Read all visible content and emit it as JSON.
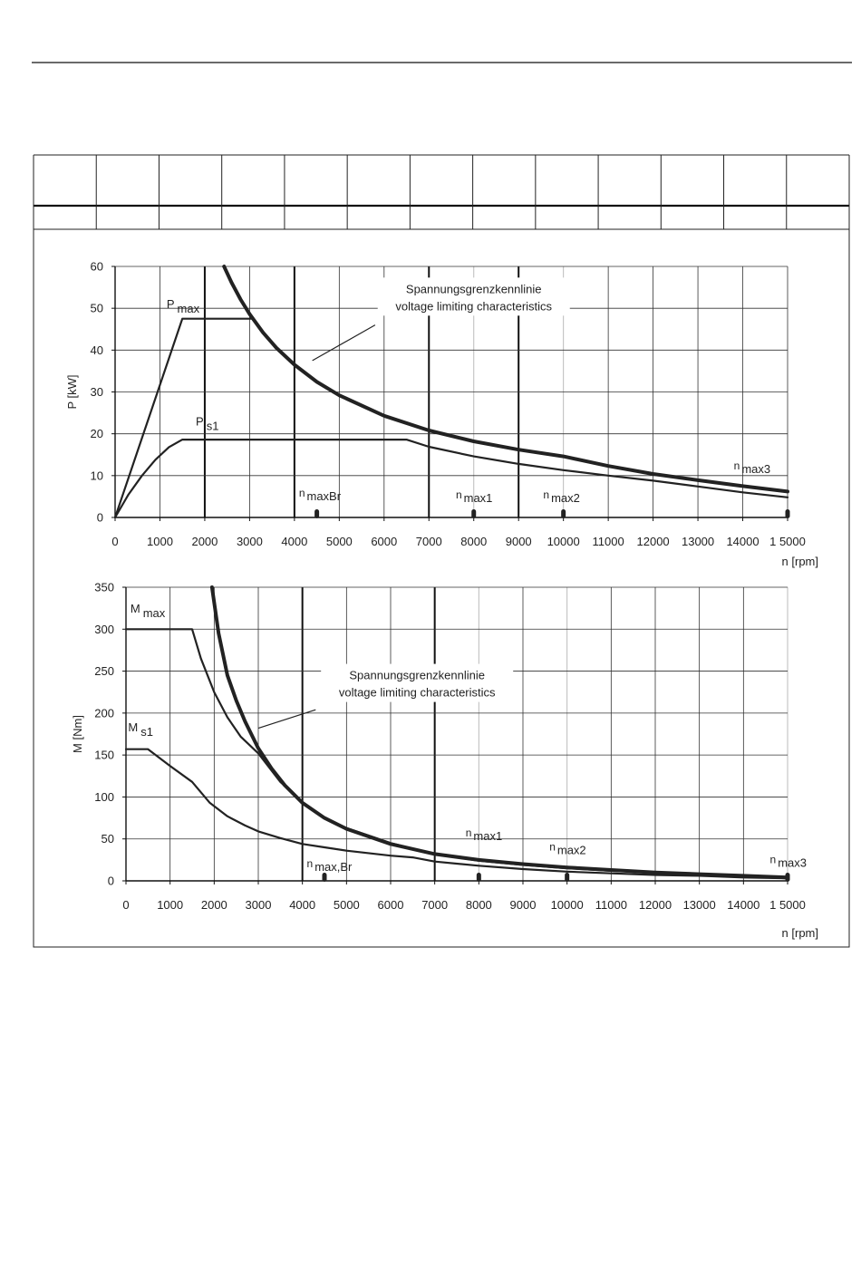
{
  "header_table": {
    "columns": 13,
    "rows": 2
  },
  "chart_data": [
    {
      "type": "line",
      "ylabel": "P [kW]",
      "xlabel": "n [rpm]",
      "xlim": [
        0,
        15000
      ],
      "ylim": [
        0,
        60
      ],
      "xticks": [
        0,
        1000,
        2000,
        3000,
        4000,
        5000,
        6000,
        7000,
        8000,
        9000,
        10000,
        11000,
        12000,
        13000,
        14000,
        15000
      ],
      "xtick_labels": [
        "0",
        "1000",
        "2000",
        "3000",
        "4000",
        "5000",
        "6000",
        "7000",
        "8000",
        "9000",
        "10000",
        "11000",
        "12000",
        "13000",
        "14000",
        "1 5000"
      ],
      "yticks": [
        0,
        10,
        20,
        30,
        40,
        50,
        60
      ],
      "ytick_labels": [
        "0",
        "10",
        "20",
        "30",
        "40",
        "50",
        "60"
      ],
      "grid": true,
      "series": [
        {
          "name": "Pmax",
          "label_main": "P",
          "label_sub": "max",
          "label_at": [
            1150,
            50
          ],
          "x": [
            0,
            1500,
            3050
          ],
          "y": [
            0,
            47.5,
            47.5
          ]
        },
        {
          "name": "Ps1",
          "label_main": "P",
          "label_sub": "s1",
          "label_at": [
            1800,
            22
          ],
          "x": [
            0,
            300,
            600,
            900,
            1200,
            1500,
            2000,
            3000,
            4000,
            5000,
            6000,
            6500,
            7000,
            8000,
            9000,
            10000,
            11000,
            12000,
            13000,
            14000,
            15000
          ],
          "y": [
            0,
            5.5,
            10,
            13.8,
            16.8,
            18.6,
            18.6,
            18.6,
            18.6,
            18.6,
            18.6,
            18.6,
            16.9,
            14.6,
            12.8,
            11.3,
            10.0,
            8.8,
            7.4,
            6.0,
            4.8
          ]
        },
        {
          "name": "voltage-limit",
          "emphasis": true,
          "x": [
            2430,
            2600,
            2800,
            3000,
            3300,
            3600,
            4000,
            4500,
            5000,
            6000,
            7000,
            8000,
            9000,
            10000,
            11000,
            12000,
            13000,
            14000,
            15000
          ],
          "y": [
            60,
            56.1,
            52.1,
            48.6,
            44.2,
            40.5,
            36.5,
            32.4,
            29.2,
            24.3,
            20.8,
            18.2,
            16.2,
            14.6,
            12.3,
            10.4,
            8.9,
            7.5,
            6.2
          ]
        }
      ],
      "markers": [
        {
          "label_main": "n",
          "label_sub": "maxBr",
          "x": 4500,
          "label_at": [
            4100,
            5
          ]
        },
        {
          "label_main": "n",
          "label_sub": "max1",
          "x": 8000,
          "label_at": [
            7600,
            4.5
          ]
        },
        {
          "label_main": "n",
          "label_sub": "max2",
          "x": 10000,
          "label_at": [
            9550,
            4.5
          ]
        },
        {
          "label_main": "n",
          "label_sub": "max3",
          "x": 15000,
          "label_at": [
            13800,
            11.5
          ]
        }
      ],
      "heavy_vlines": [
        2000,
        4000,
        7000,
        9000
      ],
      "light_vlines": [
        8000,
        10000
      ],
      "annotation": {
        "line1": "Spannungsgrenzkennlinie",
        "line2": "voltage limiting characteristics",
        "at": [
          8000,
          53
        ],
        "pointer_from": [
          5800,
          46
        ],
        "pointer_to": [
          4400,
          37.5
        ]
      }
    },
    {
      "type": "line",
      "ylabel": "M [Nm]",
      "xlabel": "n [rpm]",
      "xlim": [
        0,
        15000
      ],
      "ylim": [
        0,
        350
      ],
      "xticks": [
        0,
        1000,
        2000,
        3000,
        4000,
        5000,
        6000,
        7000,
        8000,
        9000,
        10000,
        11000,
        12000,
        13000,
        14000,
        15000
      ],
      "xtick_labels": [
        "0",
        "1000",
        "2000",
        "3000",
        "4000",
        "5000",
        "6000",
        "7000",
        "8000",
        "9000",
        "10000",
        "11000",
        "12000",
        "13000",
        "14000",
        "1 5000"
      ],
      "yticks": [
        0,
        50,
        100,
        150,
        200,
        250,
        300,
        350
      ],
      "ytick_labels": [
        "0",
        "50",
        "100",
        "150",
        "200",
        "250",
        "300",
        "350"
      ],
      "grid": true,
      "series": [
        {
          "name": "Mmax",
          "label_main": "M",
          "label_sub": "max",
          "label_at": [
            100,
            320
          ],
          "x": [
            0,
            1500,
            1700,
            2000,
            2300,
            2600,
            3000,
            3500,
            4000,
            4500,
            5000,
            6000,
            7000,
            8000,
            9000,
            10000,
            11000,
            12000,
            13000,
            14000,
            15000
          ],
          "y": [
            300,
            300,
            265,
            225,
            195,
            172,
            152,
            118,
            94,
            75,
            63,
            45,
            32,
            24,
            19,
            15,
            12,
            10,
            7,
            5,
            3
          ]
        },
        {
          "name": "Ms1",
          "label_main": "M",
          "label_sub": "s1",
          "label_at": [
            50,
            178
          ],
          "x": [
            0,
            500,
            1000,
            1500,
            1900,
            2300,
            2700,
            3000,
            3500,
            4000,
            4500,
            5000,
            6000,
            6500,
            7000,
            8000,
            9000,
            10000,
            11000,
            12000,
            13000,
            14000,
            15000
          ],
          "y": [
            157,
            157,
            137,
            118,
            93,
            77,
            66,
            59,
            51,
            44,
            40,
            36,
            30,
            28,
            23,
            18,
            14,
            11,
            9,
            7,
            6,
            4,
            3
          ]
        },
        {
          "name": "voltage-limit",
          "emphasis": true,
          "x": [
            1950,
            2100,
            2300,
            2500,
            2700,
            3000,
            3300,
            3600,
            4000,
            4500,
            5000,
            6000,
            7000,
            8000,
            9000,
            10000,
            11000,
            12000,
            13000,
            14000,
            15000
          ],
          "y": [
            350,
            295,
            245,
            215,
            190,
            158,
            134,
            114,
            93,
            75,
            62,
            44,
            32,
            25,
            20,
            16,
            13,
            10,
            8,
            6,
            4
          ]
        }
      ],
      "markers": [
        {
          "label_main": "n",
          "label_sub": "max,Br",
          "x": 4500,
          "label_at": [
            4100,
            16
          ]
        },
        {
          "label_main": "n",
          "label_sub": "max1",
          "x": 8000,
          "label_at": [
            7700,
            53
          ]
        },
        {
          "label_main": "n",
          "label_sub": "max2",
          "x": 10000,
          "label_at": [
            9600,
            36
          ]
        },
        {
          "label_main": "n",
          "label_sub": "max3",
          "x": 15000,
          "label_at": [
            14600,
            21
          ]
        }
      ],
      "heavy_vlines": [
        4000,
        7000
      ],
      "light_vlines": [
        8000,
        10000,
        15000
      ],
      "annotation": {
        "line1": "Spannungsgrenzkennlinie",
        "line2": "voltage limiting characteristics",
        "at": [
          6600,
          237
        ],
        "pointer_from": [
          4300,
          204
        ],
        "pointer_to": [
          3000,
          182
        ]
      }
    }
  ]
}
